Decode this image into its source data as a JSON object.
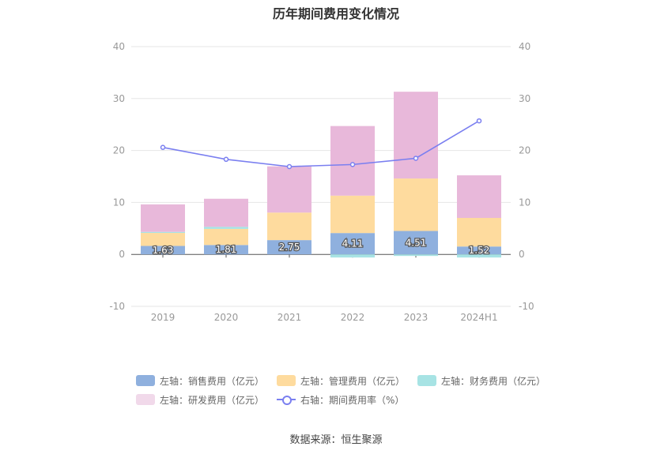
{
  "title": "历年期间费用变化情况",
  "source": "数据来源：恒生聚源",
  "colors": {
    "sales": "#8fb0de",
    "admin": "#fedb9e",
    "finance": "#a7e3e4",
    "rd": "#e8b8da",
    "rate": "#7a7ff0"
  },
  "legend": [
    {
      "label": "左轴：销售费用（亿元）",
      "color": "#8fb0de",
      "type": "bar"
    },
    {
      "label": "左轴：管理费用（亿元）",
      "color": "#fedb9e",
      "type": "bar"
    },
    {
      "label": "左轴：财务费用（亿元）",
      "color": "#a7e3e4",
      "type": "bar"
    },
    {
      "label": "左轴：研发费用（亿元）",
      "color": "#f1d9ea",
      "type": "bar"
    },
    {
      "label": "右轴：期间费用率（%）",
      "color": "#7a7ff0",
      "type": "line"
    }
  ],
  "chart_data": {
    "type": "bar",
    "categories": [
      "2019",
      "2020",
      "2021",
      "2022",
      "2023",
      "2024H1"
    ],
    "left_axis": {
      "min": -10,
      "max": 40,
      "ticks": [
        -10,
        0,
        10,
        20,
        30,
        40
      ]
    },
    "right_axis": {
      "min": -10,
      "max": 40,
      "ticks": [
        -10,
        0,
        10,
        20,
        30,
        40
      ]
    },
    "grid": true,
    "legend_position": "bottom",
    "series": [
      {
        "name": "左轴：销售费用（亿元）",
        "key": "sales",
        "values": [
          1.63,
          1.81,
          2.75,
          4.11,
          4.51,
          1.52
        ],
        "show_labels": true
      },
      {
        "name": "左轴：管理费用（亿元）",
        "key": "admin",
        "values": [
          2.5,
          3.1,
          5.3,
          7.2,
          10.1,
          5.5
        ]
      },
      {
        "name": "左轴：财务费用（亿元）",
        "key": "finance",
        "values": [
          0.2,
          0.4,
          0.0,
          -0.6,
          -0.3,
          -0.6
        ]
      },
      {
        "name": "左轴：研发费用（亿元）",
        "key": "rd",
        "values": [
          5.3,
          5.4,
          8.9,
          13.4,
          16.7,
          8.2
        ]
      },
      {
        "name": "右轴：期间费用率（%）",
        "key": "rate",
        "type": "line",
        "axis": "right",
        "values": [
          20.6,
          18.3,
          16.9,
          17.3,
          18.5,
          25.7
        ]
      }
    ]
  }
}
